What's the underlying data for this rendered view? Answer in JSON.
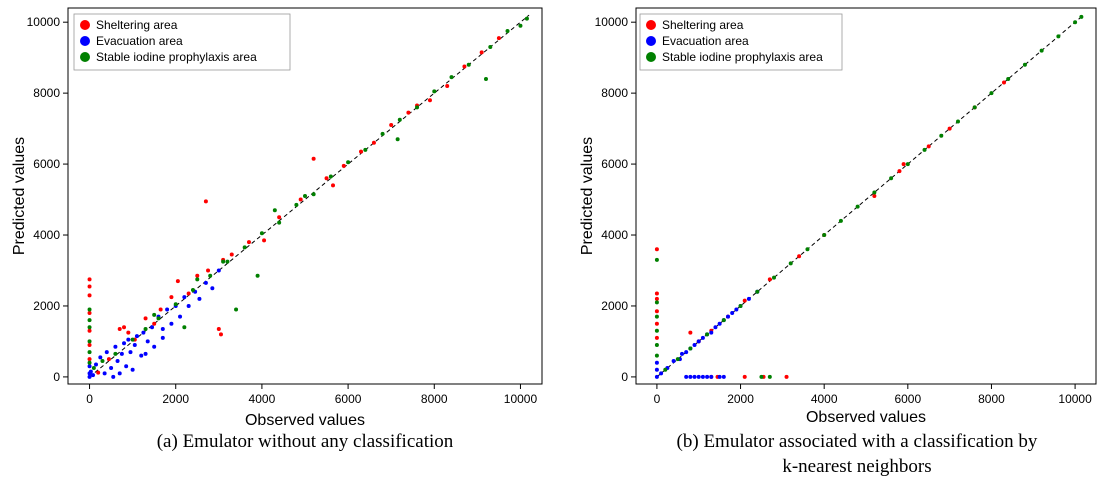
{
  "chart_data": [
    {
      "type": "scatter",
      "xlabel": "Observed values",
      "ylabel": "Predicted values",
      "xlim": [
        -500,
        10500
      ],
      "ylim": [
        -200,
        10400
      ],
      "xticks": [
        0,
        2000,
        4000,
        6000,
        8000,
        10000
      ],
      "yticks": [
        0,
        2000,
        4000,
        6000,
        8000,
        10000
      ],
      "reference_line": "y = x (dashed)",
      "legend_position": "top-left",
      "series": [
        {
          "name": "Sheltering area",
          "color": "#ff0000",
          "points": [
            [
              0,
              2750
            ],
            [
              0,
              2550
            ],
            [
              0,
              2300
            ],
            [
              0,
              1800
            ],
            [
              0,
              1300
            ],
            [
              0,
              900
            ],
            [
              0,
              500
            ],
            [
              200,
              120
            ],
            [
              450,
              500
            ],
            [
              700,
              1350
            ],
            [
              800,
              1400
            ],
            [
              900,
              1250
            ],
            [
              1050,
              1050
            ],
            [
              1300,
              1650
            ],
            [
              1500,
              1500
            ],
            [
              1650,
              1900
            ],
            [
              1900,
              2250
            ],
            [
              2050,
              2700
            ],
            [
              2300,
              2350
            ],
            [
              2500,
              2850
            ],
            [
              2750,
              3000
            ],
            [
              3050,
              1200
            ],
            [
              3100,
              3300
            ],
            [
              3300,
              3450
            ],
            [
              3700,
              3800
            ],
            [
              4050,
              3850
            ],
            [
              4400,
              4500
            ],
            [
              4900,
              5000
            ],
            [
              5200,
              6150
            ],
            [
              5500,
              5600
            ],
            [
              5900,
              5950
            ],
            [
              6300,
              6350
            ],
            [
              6600,
              6600
            ],
            [
              7000,
              7100
            ],
            [
              7400,
              7450
            ],
            [
              7600,
              7650
            ],
            [
              7900,
              7800
            ],
            [
              8300,
              8200
            ],
            [
              8700,
              8750
            ],
            [
              9100,
              9150
            ],
            [
              9500,
              9550
            ],
            [
              2700,
              4950
            ],
            [
              3000,
              1350
            ],
            [
              5650,
              5400
            ]
          ]
        },
        {
          "name": "Evacuation area",
          "color": "#0000ff",
          "points": [
            [
              0,
              0
            ],
            [
              0,
              100
            ],
            [
              0,
              300
            ],
            [
              30,
              150
            ],
            [
              80,
              50
            ],
            [
              150,
              350
            ],
            [
              250,
              550
            ],
            [
              350,
              100
            ],
            [
              400,
              700
            ],
            [
              500,
              250
            ],
            [
              600,
              850
            ],
            [
              650,
              450
            ],
            [
              750,
              650
            ],
            [
              800,
              950
            ],
            [
              850,
              300
            ],
            [
              900,
              1050
            ],
            [
              950,
              700
            ],
            [
              1050,
              900
            ],
            [
              1100,
              1150
            ],
            [
              1200,
              600
            ],
            [
              1250,
              1250
            ],
            [
              1350,
              1000
            ],
            [
              1450,
              1400
            ],
            [
              1500,
              850
            ],
            [
              1600,
              1700
            ],
            [
              1700,
              1350
            ],
            [
              1800,
              1900
            ],
            [
              1900,
              1500
            ],
            [
              2000,
              2000
            ],
            [
              2100,
              1700
            ],
            [
              2200,
              2250
            ],
            [
              2300,
              2000
            ],
            [
              2450,
              2400
            ],
            [
              2550,
              2200
            ],
            [
              2700,
              2650
            ],
            [
              2850,
              2500
            ],
            [
              3000,
              3000
            ],
            [
              550,
              0
            ],
            [
              700,
              100
            ],
            [
              1000,
              200
            ],
            [
              1300,
              650
            ],
            [
              1700,
              1100
            ]
          ]
        },
        {
          "name": "Stable iodine prophylaxis area",
          "color": "#008000",
          "points": [
            [
              0,
              1900
            ],
            [
              0,
              1600
            ],
            [
              0,
              1400
            ],
            [
              0,
              1000
            ],
            [
              0,
              700
            ],
            [
              0,
              400
            ],
            [
              100,
              250
            ],
            [
              300,
              450
            ],
            [
              600,
              650
            ],
            [
              1000,
              1050
            ],
            [
              1300,
              1350
            ],
            [
              1600,
              1650
            ],
            [
              2000,
              2050
            ],
            [
              2200,
              1400
            ],
            [
              2400,
              2450
            ],
            [
              2800,
              2850
            ],
            [
              3200,
              3250
            ],
            [
              3400,
              1900
            ],
            [
              3600,
              3650
            ],
            [
              3900,
              2850
            ],
            [
              4000,
              4050
            ],
            [
              4400,
              4350
            ],
            [
              4800,
              4850
            ],
            [
              5000,
              5100
            ],
            [
              5200,
              5150
            ],
            [
              5600,
              5650
            ],
            [
              6000,
              6050
            ],
            [
              6400,
              6400
            ],
            [
              6800,
              6850
            ],
            [
              7200,
              7250
            ],
            [
              7600,
              7600
            ],
            [
              8000,
              8050
            ],
            [
              8400,
              8450
            ],
            [
              8800,
              8800
            ],
            [
              9200,
              8400
            ],
            [
              9300,
              9300
            ],
            [
              9700,
              9750
            ],
            [
              10000,
              9900
            ],
            [
              10150,
              10100
            ],
            [
              7150,
              6700
            ],
            [
              4300,
              4700
            ],
            [
              3100,
              3250
            ],
            [
              1500,
              1750
            ],
            [
              2500,
              2750
            ]
          ]
        }
      ]
    },
    {
      "type": "scatter",
      "xlabel": "Observed values",
      "ylabel": "Predicted values",
      "xlim": [
        -500,
        10500
      ],
      "ylim": [
        -200,
        10400
      ],
      "xticks": [
        0,
        2000,
        4000,
        6000,
        8000,
        10000
      ],
      "yticks": [
        0,
        2000,
        4000,
        6000,
        8000,
        10000
      ],
      "reference_line": "y = x (dashed)",
      "legend_position": "top-left",
      "series": [
        {
          "name": "Sheltering area",
          "color": "#ff0000",
          "points": [
            [
              0,
              3600
            ],
            [
              0,
              2350
            ],
            [
              0,
              2200
            ],
            [
              0,
              1850
            ],
            [
              0,
              1500
            ],
            [
              0,
              1100
            ],
            [
              800,
              1250
            ],
            [
              1000,
              1000
            ],
            [
              1300,
              1300
            ],
            [
              1700,
              1700
            ],
            [
              2100,
              2150
            ],
            [
              2700,
              2750
            ],
            [
              1300,
              0
            ],
            [
              1450,
              0
            ],
            [
              2100,
              0
            ],
            [
              2550,
              0
            ],
            [
              3100,
              0
            ],
            [
              3400,
              3400
            ],
            [
              4000,
              4000
            ],
            [
              5200,
              5100
            ],
            [
              5800,
              5800
            ],
            [
              5900,
              6000
            ],
            [
              6500,
              6500
            ],
            [
              7000,
              7000
            ],
            [
              7600,
              7600
            ],
            [
              8300,
              8300
            ]
          ]
        },
        {
          "name": "Evacuation area",
          "color": "#0000ff",
          "points": [
            [
              0,
              0
            ],
            [
              0,
              200
            ],
            [
              0,
              400
            ],
            [
              100,
              100
            ],
            [
              250,
              250
            ],
            [
              400,
              450
            ],
            [
              550,
              500
            ],
            [
              600,
              650
            ],
            [
              700,
              700
            ],
            [
              800,
              800
            ],
            [
              900,
              900
            ],
            [
              1000,
              1000
            ],
            [
              1100,
              1100
            ],
            [
              1200,
              1200
            ],
            [
              1300,
              1250
            ],
            [
              1400,
              1400
            ],
            [
              1500,
              1500
            ],
            [
              1600,
              1600
            ],
            [
              1700,
              1700
            ],
            [
              1800,
              1800
            ],
            [
              1900,
              1900
            ],
            [
              2000,
              2000
            ],
            [
              2200,
              2200
            ],
            [
              2400,
              2400
            ],
            [
              700,
              0
            ],
            [
              800,
              0
            ],
            [
              900,
              0
            ],
            [
              1000,
              0
            ],
            [
              1100,
              0
            ],
            [
              1200,
              0
            ],
            [
              1300,
              0
            ],
            [
              1500,
              0
            ],
            [
              1600,
              0
            ]
          ]
        },
        {
          "name": "Stable iodine prophylaxis area",
          "color": "#008000",
          "points": [
            [
              0,
              3300
            ],
            [
              0,
              2100
            ],
            [
              0,
              1700
            ],
            [
              0,
              1300
            ],
            [
              0,
              900
            ],
            [
              0,
              600
            ],
            [
              200,
              200
            ],
            [
              500,
              500
            ],
            [
              800,
              800
            ],
            [
              1200,
              1200
            ],
            [
              1600,
              1600
            ],
            [
              2000,
              2000
            ],
            [
              2400,
              2400
            ],
            [
              2800,
              2800
            ],
            [
              3200,
              3200
            ],
            [
              3600,
              3600
            ],
            [
              4000,
              4000
            ],
            [
              4400,
              4400
            ],
            [
              4800,
              4800
            ],
            [
              5200,
              5200
            ],
            [
              5600,
              5600
            ],
            [
              6000,
              6000
            ],
            [
              6400,
              6400
            ],
            [
              6800,
              6800
            ],
            [
              7200,
              7200
            ],
            [
              7600,
              7600
            ],
            [
              8000,
              8000
            ],
            [
              8400,
              8400
            ],
            [
              8800,
              8800
            ],
            [
              9200,
              9200
            ],
            [
              9600,
              9600
            ],
            [
              10000,
              10000
            ],
            [
              10150,
              10150
            ],
            [
              2500,
              0
            ],
            [
              2700,
              0
            ]
          ]
        }
      ]
    }
  ],
  "captions": {
    "a": "(a)   Emulator without any classification",
    "b_line1": "(b)   Emulator associated with a classification by",
    "b_line2": "k-nearest neighbors"
  }
}
